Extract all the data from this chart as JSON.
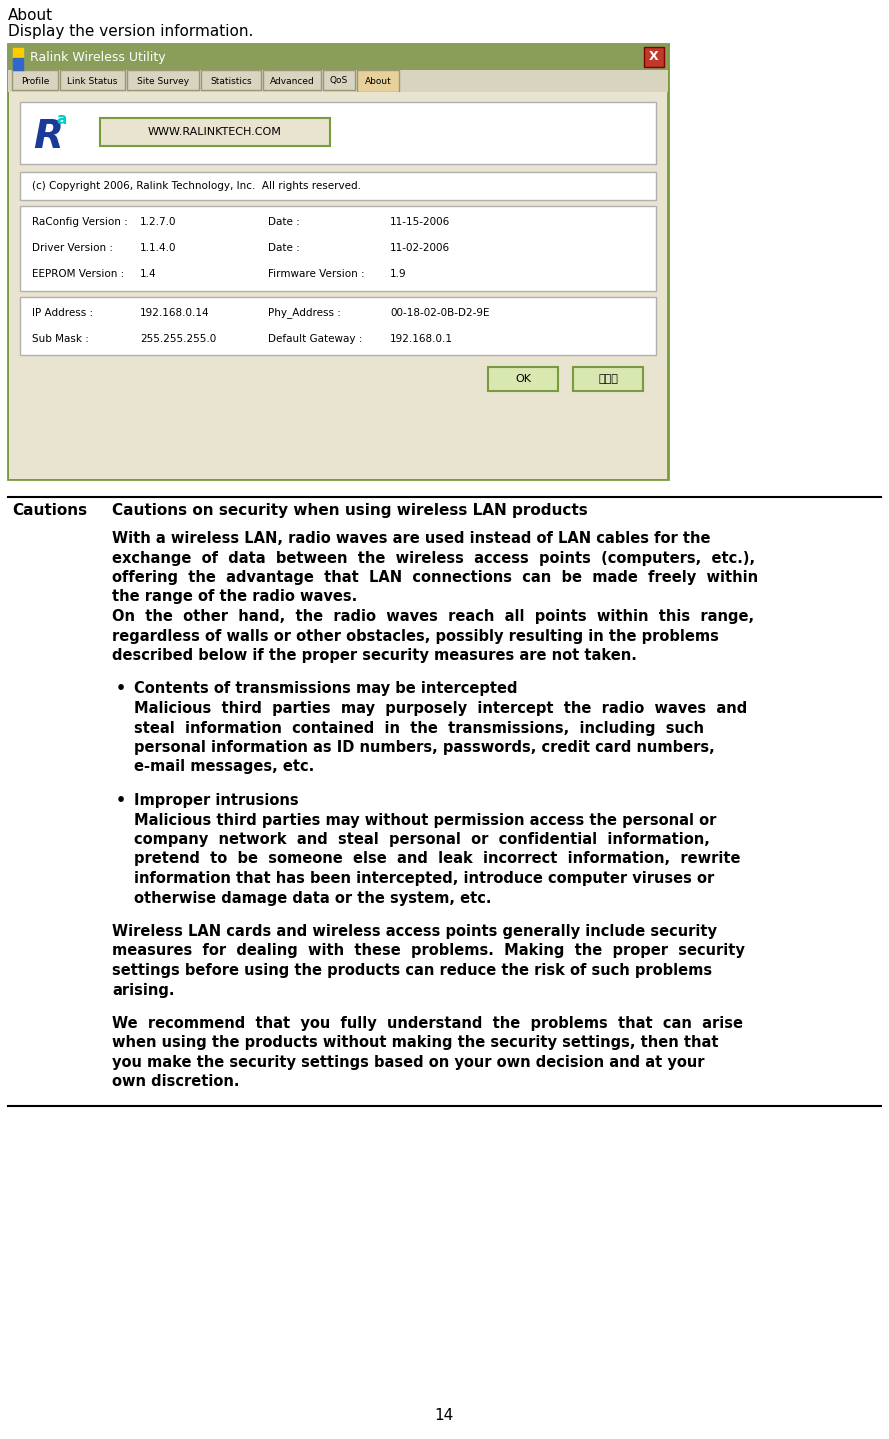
{
  "bg_color": "#ffffff",
  "page_number": "14",
  "top_label": "About",
  "top_desc": "Display the version information.",
  "screenshot": {
    "title_bar_color": "#8a9e5a",
    "title_bar_text": "Ralink Wireless Utility",
    "close_btn_color": "#c0392b",
    "tab_bg": "#d8d4c0",
    "tabs": [
      "Profile",
      "Link Status",
      "Site Survey",
      "Statistics",
      "Advanced",
      "QoS",
      "About"
    ],
    "active_tab": "About",
    "content_bg": "#e8e4d0",
    "inner_box_bg": "#ffffff",
    "inner_box_border": "#b0b0b0",
    "logo_url_text": "WWW.RALINKTECH.COM",
    "copyright": "(c) Copyright 2006, Ralink Technology, Inc.  All rights reserved.",
    "fields": [
      {
        "label": "RaConfig Version :",
        "value": "1.2.7.0",
        "label2": "Date :",
        "value2": "11-15-2006"
      },
      {
        "label": "Driver Version :",
        "value": "1.1.4.0",
        "label2": "Date :",
        "value2": "11-02-2006"
      },
      {
        "label": "EEPROM Version :",
        "value": "1.4",
        "label2": "Firmware Version :",
        "value2": "1.9"
      },
      {
        "label": "IP Address :",
        "value": "192.168.0.14",
        "label2": "Phy_Address :",
        "value2": "00-18-02-0B-D2-9E"
      },
      {
        "label": "Sub Mask :",
        "value": "255.255.255.0",
        "label2": "Default Gateway :",
        "value2": "192.168.0.1"
      }
    ],
    "ok_btn": "OK",
    "help_btn": "ヘルプ"
  },
  "cautions_section": {
    "label": "Cautions",
    "heading": "Cautions on security when using wireless LAN products",
    "para1_lines": [
      "With a wireless LAN, radio waves are used instead of LAN cables for the",
      "exchange  of  data  between  the  wireless  access  points  (computers,  etc.),",
      "offering  the  advantage  that  LAN  connections  can  be  made  freely  within",
      "the range of the radio waves.",
      "On  the  other  hand,  the  radio  waves  reach  all  points  within  this  range,",
      "regardless of walls or other obstacles, possibly resulting in the problems",
      "described below if the proper security measures are not taken."
    ],
    "bullets": [
      {
        "title": "Contents of transmissions may be intercepted",
        "body_lines": [
          "Malicious  third  parties  may  purposely  intercept  the  radio  waves  and",
          "steal  information  contained  in  the  transmissions,  including  such",
          "personal information as ID numbers, passwords, credit card numbers,",
          "e-mail messages, etc."
        ]
      },
      {
        "title": "Improper intrusions",
        "body_lines": [
          "Malicious third parties may without permission access the personal or",
          "company  network  and  steal  personal  or  confidential  information,",
          "pretend  to  be  someone  else  and  leak  incorrect  information,  rewrite",
          "information that has been intercepted, introduce computer viruses or",
          "otherwise damage data or the system, etc."
        ]
      }
    ],
    "para2_lines": [
      "Wireless LAN cards and wireless access points generally include security",
      "measures  for  dealing  with  these  problems.  Making  the  proper  security",
      "settings before using the products can reduce the risk of such problems",
      "arising."
    ],
    "para3_lines": [
      "We  recommend  that  you  fully  understand  the  problems  that  can  arise",
      "when using the products without making the security settings, then that",
      "you make the security settings based on your own decision and at your",
      "own discretion."
    ]
  }
}
